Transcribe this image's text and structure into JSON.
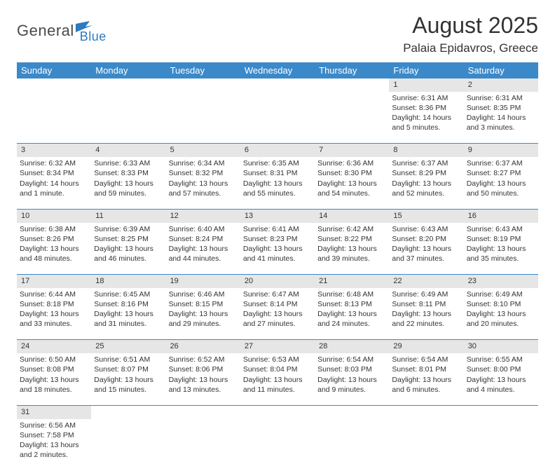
{
  "logo": {
    "part1": "General",
    "part2": "Blue"
  },
  "title": "August 2025",
  "location": "Palaia Epidavros, Greece",
  "colors": {
    "header_bg": "#3b89c9",
    "header_fg": "#ffffff",
    "daynum_bg": "#e6e6e6",
    "border": "#3b89c9",
    "text": "#333333",
    "logo_gray": "#4a4a4a",
    "logo_blue": "#2b7bbf"
  },
  "weekdays": [
    "Sunday",
    "Monday",
    "Tuesday",
    "Wednesday",
    "Thursday",
    "Friday",
    "Saturday"
  ],
  "weeks": [
    {
      "nums": [
        "",
        "",
        "",
        "",
        "",
        "1",
        "2"
      ],
      "cells": [
        null,
        null,
        null,
        null,
        null,
        {
          "sunrise": "6:31 AM",
          "sunset": "8:36 PM",
          "daylight": "14 hours and 5 minutes."
        },
        {
          "sunrise": "6:31 AM",
          "sunset": "8:35 PM",
          "daylight": "14 hours and 3 minutes."
        }
      ]
    },
    {
      "nums": [
        "3",
        "4",
        "5",
        "6",
        "7",
        "8",
        "9"
      ],
      "cells": [
        {
          "sunrise": "6:32 AM",
          "sunset": "8:34 PM",
          "daylight": "14 hours and 1 minute."
        },
        {
          "sunrise": "6:33 AM",
          "sunset": "8:33 PM",
          "daylight": "13 hours and 59 minutes."
        },
        {
          "sunrise": "6:34 AM",
          "sunset": "8:32 PM",
          "daylight": "13 hours and 57 minutes."
        },
        {
          "sunrise": "6:35 AM",
          "sunset": "8:31 PM",
          "daylight": "13 hours and 55 minutes."
        },
        {
          "sunrise": "6:36 AM",
          "sunset": "8:30 PM",
          "daylight": "13 hours and 54 minutes."
        },
        {
          "sunrise": "6:37 AM",
          "sunset": "8:29 PM",
          "daylight": "13 hours and 52 minutes."
        },
        {
          "sunrise": "6:37 AM",
          "sunset": "8:27 PM",
          "daylight": "13 hours and 50 minutes."
        }
      ]
    },
    {
      "nums": [
        "10",
        "11",
        "12",
        "13",
        "14",
        "15",
        "16"
      ],
      "cells": [
        {
          "sunrise": "6:38 AM",
          "sunset": "8:26 PM",
          "daylight": "13 hours and 48 minutes."
        },
        {
          "sunrise": "6:39 AM",
          "sunset": "8:25 PM",
          "daylight": "13 hours and 46 minutes."
        },
        {
          "sunrise": "6:40 AM",
          "sunset": "8:24 PM",
          "daylight": "13 hours and 44 minutes."
        },
        {
          "sunrise": "6:41 AM",
          "sunset": "8:23 PM",
          "daylight": "13 hours and 41 minutes."
        },
        {
          "sunrise": "6:42 AM",
          "sunset": "8:22 PM",
          "daylight": "13 hours and 39 minutes."
        },
        {
          "sunrise": "6:43 AM",
          "sunset": "8:20 PM",
          "daylight": "13 hours and 37 minutes."
        },
        {
          "sunrise": "6:43 AM",
          "sunset": "8:19 PM",
          "daylight": "13 hours and 35 minutes."
        }
      ]
    },
    {
      "nums": [
        "17",
        "18",
        "19",
        "20",
        "21",
        "22",
        "23"
      ],
      "cells": [
        {
          "sunrise": "6:44 AM",
          "sunset": "8:18 PM",
          "daylight": "13 hours and 33 minutes."
        },
        {
          "sunrise": "6:45 AM",
          "sunset": "8:16 PM",
          "daylight": "13 hours and 31 minutes."
        },
        {
          "sunrise": "6:46 AM",
          "sunset": "8:15 PM",
          "daylight": "13 hours and 29 minutes."
        },
        {
          "sunrise": "6:47 AM",
          "sunset": "8:14 PM",
          "daylight": "13 hours and 27 minutes."
        },
        {
          "sunrise": "6:48 AM",
          "sunset": "8:13 PM",
          "daylight": "13 hours and 24 minutes."
        },
        {
          "sunrise": "6:49 AM",
          "sunset": "8:11 PM",
          "daylight": "13 hours and 22 minutes."
        },
        {
          "sunrise": "6:49 AM",
          "sunset": "8:10 PM",
          "daylight": "13 hours and 20 minutes."
        }
      ]
    },
    {
      "nums": [
        "24",
        "25",
        "26",
        "27",
        "28",
        "29",
        "30"
      ],
      "cells": [
        {
          "sunrise": "6:50 AM",
          "sunset": "8:08 PM",
          "daylight": "13 hours and 18 minutes."
        },
        {
          "sunrise": "6:51 AM",
          "sunset": "8:07 PM",
          "daylight": "13 hours and 15 minutes."
        },
        {
          "sunrise": "6:52 AM",
          "sunset": "8:06 PM",
          "daylight": "13 hours and 13 minutes."
        },
        {
          "sunrise": "6:53 AM",
          "sunset": "8:04 PM",
          "daylight": "13 hours and 11 minutes."
        },
        {
          "sunrise": "6:54 AM",
          "sunset": "8:03 PM",
          "daylight": "13 hours and 9 minutes."
        },
        {
          "sunrise": "6:54 AM",
          "sunset": "8:01 PM",
          "daylight": "13 hours and 6 minutes."
        },
        {
          "sunrise": "6:55 AM",
          "sunset": "8:00 PM",
          "daylight": "13 hours and 4 minutes."
        }
      ]
    },
    {
      "nums": [
        "31",
        "",
        "",
        "",
        "",
        "",
        ""
      ],
      "cells": [
        {
          "sunrise": "6:56 AM",
          "sunset": "7:58 PM",
          "daylight": "13 hours and 2 minutes."
        },
        null,
        null,
        null,
        null,
        null,
        null
      ]
    }
  ],
  "labels": {
    "sunrise": "Sunrise: ",
    "sunset": "Sunset: ",
    "daylight": "Daylight: "
  }
}
